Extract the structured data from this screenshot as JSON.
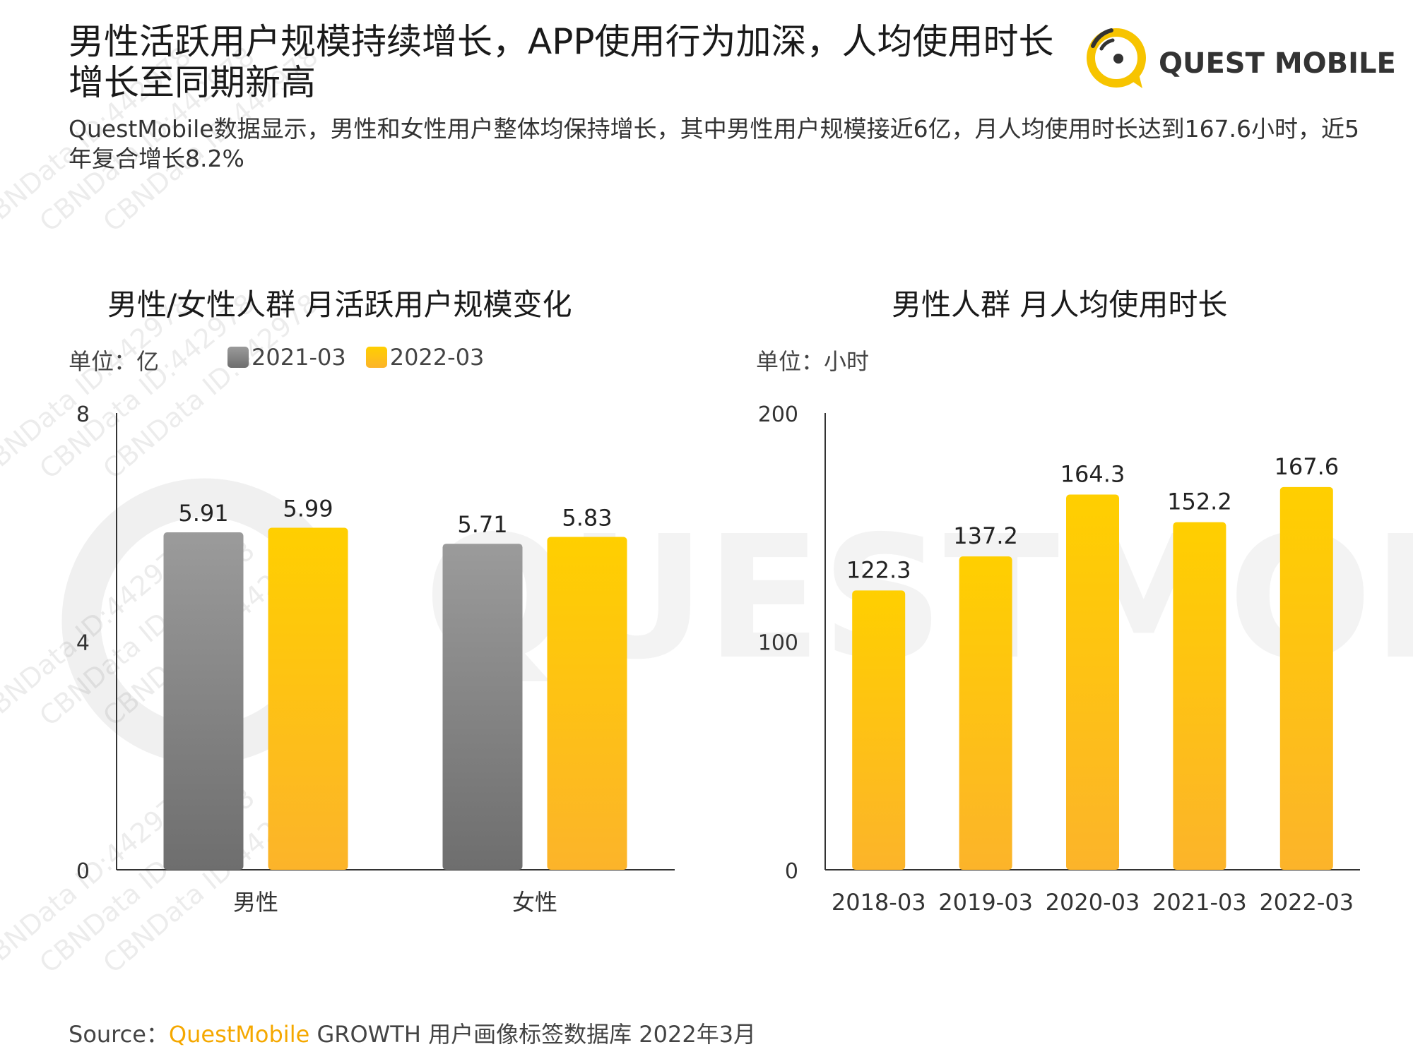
{
  "header": {
    "title": "男性活跃用户规模持续增长，APP使用行为加深，人均使用时长增长至同期新高",
    "subtitle": "QuestMobile数据显示，男性和女性用户整体均保持增长，其中男性用户规模接近6亿，月人均使用时长达到167.6小时，近5年复合增长8.2%",
    "logo_text": "QUEST MOBILE"
  },
  "watermark": {
    "text_line1": "CBNData ID:442978",
    "background_text": "QUESTMOBILE"
  },
  "colors": {
    "gray_top": "#9b9b9b",
    "gray_bottom": "#6e6e6e",
    "yellow_top": "#ffcf00",
    "yellow_bottom": "#fcb42a",
    "accent": "#f5a800"
  },
  "chart_data": [
    {
      "type": "bar",
      "title": "男性/女性人群 月活跃用户规模变化",
      "unit": "单位：亿",
      "categories": [
        "男性",
        "女性"
      ],
      "series": [
        {
          "name": "2021-03",
          "values": [
            5.91,
            5.71
          ]
        },
        {
          "name": "2022-03",
          "values": [
            5.99,
            5.83
          ]
        }
      ],
      "ylim": [
        0,
        8
      ],
      "yticks": [
        "0",
        "4",
        "8"
      ],
      "legend": "top",
      "grid": false
    },
    {
      "type": "bar",
      "title": "男性人群 月人均使用时长",
      "unit": "单位：小时",
      "categories": [
        "2018-03",
        "2019-03",
        "2020-03",
        "2021-03",
        "2022-03"
      ],
      "values": [
        122.3,
        137.2,
        164.3,
        152.2,
        167.6
      ],
      "ylim": [
        0,
        200
      ],
      "yticks": [
        "0",
        "100",
        "200"
      ],
      "grid": false
    }
  ],
  "footer": {
    "source_label": "Source：",
    "source_brand": "QuestMobile",
    "source_rest": " GROWTH 用户画像标签数据库 2022年3月"
  }
}
